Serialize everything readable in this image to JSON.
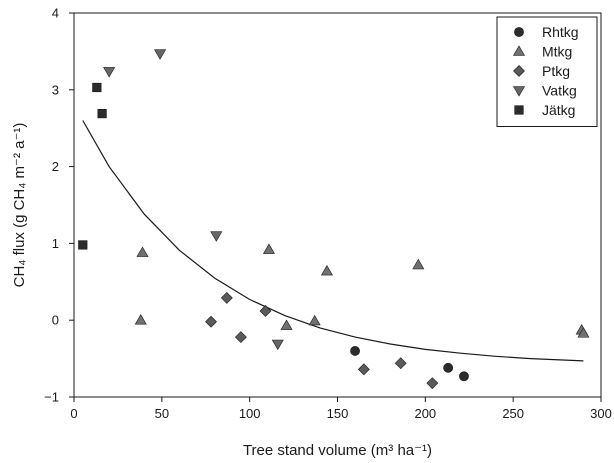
{
  "chart_data": {
    "type": "scatter",
    "title": "",
    "xlabel": "Tree stand volume (m³ ha⁻¹)",
    "ylabel": "CH₄ flux (g CH₄ m⁻² a⁻¹)",
    "xlim": [
      0,
      300
    ],
    "ylim": [
      -1,
      4
    ],
    "x_ticks": [
      0,
      50,
      100,
      150,
      200,
      250,
      300
    ],
    "y_ticks": [
      -1,
      0,
      1,
      2,
      3,
      4
    ],
    "grid": false,
    "legend_position": "top-right",
    "series": [
      {
        "name": "Rhtkg",
        "marker": "circle",
        "color": "#2b2b2b",
        "points": [
          [
            160,
            -0.4
          ],
          [
            213,
            -0.62
          ],
          [
            222,
            -0.73
          ]
        ]
      },
      {
        "name": "Mtkg",
        "marker": "triangle-up",
        "color": "#707070",
        "points": [
          [
            38,
            0.0
          ],
          [
            39,
            0.88
          ],
          [
            111,
            0.92
          ],
          [
            121,
            -0.07
          ],
          [
            137,
            -0.01
          ],
          [
            144,
            0.64
          ],
          [
            196,
            0.72
          ],
          [
            289,
            -0.13
          ],
          [
            290,
            -0.17
          ]
        ]
      },
      {
        "name": "Ptkg",
        "marker": "diamond",
        "color": "#5a5a5a",
        "points": [
          [
            78,
            -0.02
          ],
          [
            87,
            0.29
          ],
          [
            95,
            -0.22
          ],
          [
            109,
            0.12
          ],
          [
            165,
            -0.64
          ],
          [
            186,
            -0.56
          ],
          [
            204,
            -0.82
          ]
        ]
      },
      {
        "name": "Vatkg",
        "marker": "triangle-down",
        "color": "#666666",
        "points": [
          [
            20,
            3.24
          ],
          [
            49,
            3.47
          ],
          [
            81,
            1.1
          ],
          [
            116,
            -0.31
          ]
        ]
      },
      {
        "name": "Jätkg",
        "marker": "square",
        "color": "#2b2b2b",
        "points": [
          [
            5,
            0.98
          ],
          [
            13,
            3.03
          ],
          [
            16,
            2.69
          ]
        ]
      }
    ],
    "fit_curve": {
      "type": "exponential-decay",
      "color": "#1a1a1a",
      "points": [
        [
          5,
          2.6
        ],
        [
          20,
          2.0
        ],
        [
          40,
          1.38
        ],
        [
          60,
          0.91
        ],
        [
          80,
          0.55
        ],
        [
          100,
          0.27
        ],
        [
          120,
          0.06
        ],
        [
          140,
          -0.1
        ],
        [
          160,
          -0.22
        ],
        [
          180,
          -0.31
        ],
        [
          200,
          -0.38
        ],
        [
          220,
          -0.43
        ],
        [
          240,
          -0.47
        ],
        [
          260,
          -0.5
        ],
        [
          290,
          -0.53
        ]
      ]
    }
  }
}
